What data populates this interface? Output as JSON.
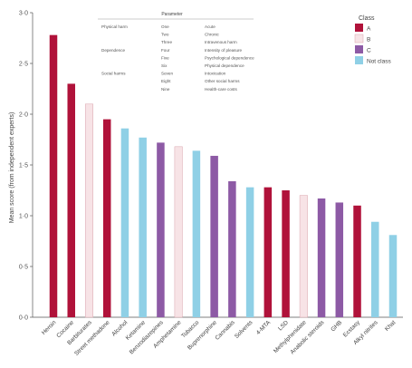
{
  "chart_data": {
    "type": "bar",
    "ylabel": "Mean score (from independent experts)",
    "ylim": [
      0,
      3.0
    ],
    "yticks": [
      "0·0",
      "0·5",
      "1·0",
      "1·5",
      "2·0",
      "2·5",
      "3·0"
    ],
    "ytick_values": [
      0,
      0.5,
      1.0,
      1.5,
      2.0,
      2.5,
      3.0
    ],
    "grid": false,
    "categories": [
      "Heroin",
      "Cocaine",
      "Barbiturates",
      "Street methadone",
      "Alcohol",
      "Ketamine",
      "Benzodiazepines",
      "Amphetamine",
      "Tobacco",
      "Buprenorphine",
      "Cannabis",
      "Solvents",
      "4-MTA",
      "LSD",
      "Methylphenidate",
      "Anabolic steroids",
      "GHB",
      "Ecstasy",
      "Alkyl nitrites",
      "Khat"
    ],
    "values": [
      2.78,
      2.3,
      2.1,
      1.95,
      1.86,
      1.77,
      1.72,
      1.68,
      1.64,
      1.59,
      1.34,
      1.28,
      1.28,
      1.25,
      1.2,
      1.17,
      1.13,
      1.1,
      0.94,
      0.81
    ],
    "classes": [
      "A",
      "A",
      "B",
      "A",
      "No class",
      "No class",
      "C",
      "B",
      "No class",
      "C",
      "C",
      "No class",
      "A",
      "A",
      "B",
      "C",
      "C",
      "A",
      "No class",
      "No class"
    ],
    "legend": {
      "title": "Class",
      "position": "top-right",
      "entries": [
        {
          "name": "A",
          "color": "#b0123a"
        },
        {
          "name": "B",
          "color": "#f7e3e6"
        },
        {
          "name": "C",
          "color": "#8d5aa5"
        },
        {
          "name": "Not class",
          "color": "#8fd0e6"
        }
      ]
    },
    "parameter_table": {
      "title": "Parameter",
      "rows": [
        {
          "group": "Physical harm",
          "number": "One",
          "parameter": "Acute"
        },
        {
          "group": "",
          "number": "Two",
          "parameter": "Chronic"
        },
        {
          "group": "",
          "number": "Three",
          "parameter": "Intravenous harm"
        },
        {
          "group": "Dependence",
          "number": "Four",
          "parameter": "Intensity of pleasure"
        },
        {
          "group": "",
          "number": "Five",
          "parameter": "Psychological dependence"
        },
        {
          "group": "",
          "number": "Six",
          "parameter": "Physical dependence"
        },
        {
          "group": "Social harms",
          "number": "Seven",
          "parameter": "Intoxication"
        },
        {
          "group": "",
          "number": "Eight",
          "parameter": "Other social harms"
        },
        {
          "group": "",
          "number": "Nine",
          "parameter": "Health-care costs"
        }
      ]
    }
  }
}
